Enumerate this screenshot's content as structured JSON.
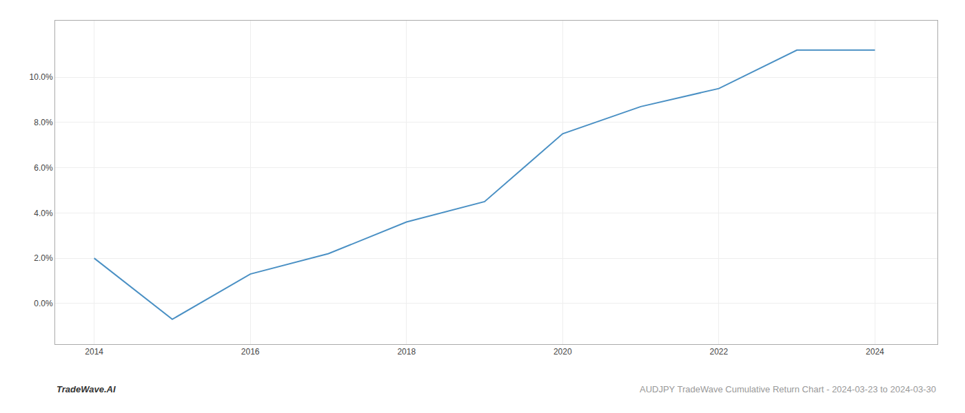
{
  "chart_data": {
    "type": "line",
    "x": [
      2014,
      2015,
      2016,
      2017,
      2018,
      2019,
      2020,
      2021,
      2022,
      2023,
      2024
    ],
    "values": [
      0.02,
      -0.007,
      0.013,
      0.022,
      0.036,
      0.045,
      0.075,
      0.087,
      0.095,
      0.112,
      0.112
    ],
    "color": "#4a90c4",
    "xlim": [
      2013.5,
      2024.8
    ],
    "ylim": [
      -0.018,
      0.125
    ],
    "xticks": [
      2014,
      2016,
      2018,
      2020,
      2022,
      2024
    ],
    "yticks": [
      {
        "value": 0.0,
        "label": "0.0%"
      },
      {
        "value": 0.02,
        "label": "2.0%"
      },
      {
        "value": 0.04,
        "label": "4.0%"
      },
      {
        "value": 0.06,
        "label": "6.0%"
      },
      {
        "value": 0.08,
        "label": "8.0%"
      },
      {
        "value": 0.1,
        "label": "10.0%"
      }
    ],
    "grid": true,
    "annotations": [
      "TradeWave.AI",
      "AUDJPY TradeWave Cumulative Return Chart - 2024-03-23 to 2024-03-30"
    ]
  }
}
